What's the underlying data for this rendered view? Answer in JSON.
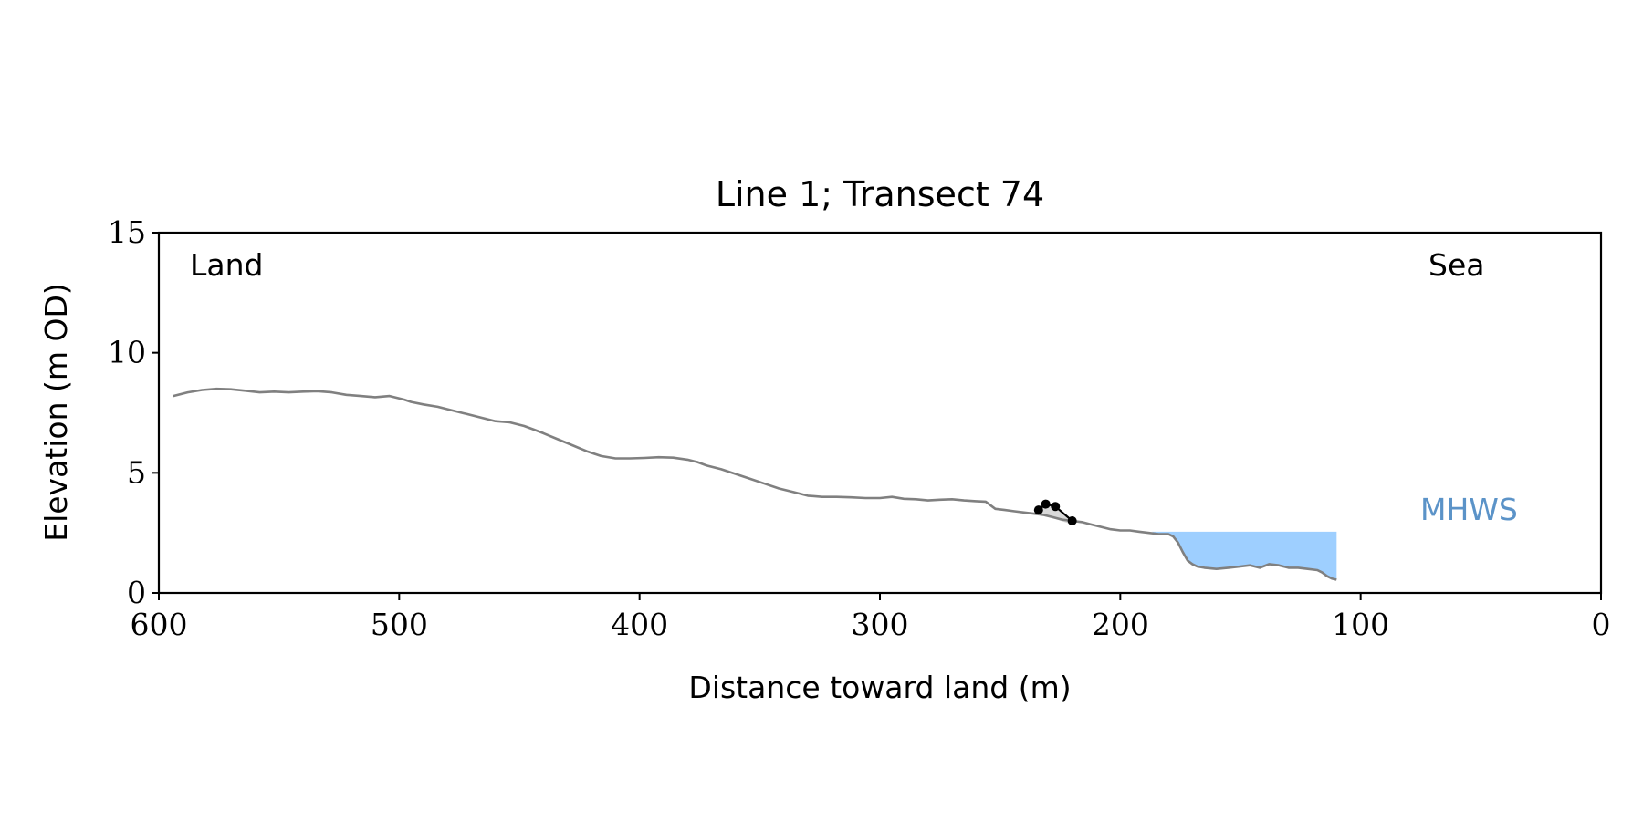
{
  "chart_data": {
    "type": "line",
    "title": "Line 1; Transect 74",
    "xlabel": "Distance toward land (m)",
    "ylabel": "Elevation (m OD)",
    "xlim": [
      600,
      0
    ],
    "ylim": [
      0,
      15
    ],
    "xticks": [
      600,
      500,
      400,
      300,
      200,
      100,
      0
    ],
    "yticks": [
      0,
      5,
      10,
      15
    ],
    "grid": false,
    "annotations": {
      "land": "Land",
      "sea": "Sea",
      "mhws": "MHWS"
    },
    "colors": {
      "profile": "#808080",
      "water": "#9ecfff",
      "mhws_label": "#5b93c8",
      "points": "#000000",
      "highlight": "#d9d9d9"
    },
    "mhws_level": 2.55,
    "water_extent": [
      187,
      110
    ],
    "series": [
      {
        "x": [
          594,
          588,
          582,
          576,
          570,
          564,
          558,
          552,
          546,
          540,
          534,
          528,
          522,
          516,
          510,
          504,
          498,
          495,
          490,
          484,
          478,
          472,
          466,
          460,
          454,
          448,
          444,
          440,
          434,
          428,
          422,
          416,
          410,
          404,
          398,
          392,
          386,
          380,
          376,
          372,
          366,
          360,
          354,
          348,
          342,
          336,
          330,
          324,
          318,
          312,
          306,
          300,
          295,
          290,
          285,
          280,
          275,
          270,
          265,
          260,
          256,
          252,
          248,
          244,
          240,
          236,
          232,
          228,
          224,
          220,
          216,
          212,
          208,
          204,
          200,
          196,
          192,
          188,
          184,
          180,
          178,
          176,
          174,
          172,
          170,
          168,
          165,
          160,
          155,
          150,
          146,
          142,
          138,
          134,
          130,
          126,
          122,
          118,
          116,
          114,
          112,
          110
        ],
        "y": [
          8.2,
          8.35,
          8.45,
          8.5,
          8.48,
          8.42,
          8.35,
          8.38,
          8.35,
          8.38,
          8.4,
          8.35,
          8.25,
          8.2,
          8.15,
          8.2,
          8.05,
          7.95,
          7.85,
          7.75,
          7.6,
          7.45,
          7.3,
          7.15,
          7.1,
          6.95,
          6.8,
          6.65,
          6.4,
          6.15,
          5.9,
          5.7,
          5.6,
          5.6,
          5.62,
          5.65,
          5.63,
          5.55,
          5.45,
          5.3,
          5.15,
          4.95,
          4.75,
          4.55,
          4.35,
          4.2,
          4.05,
          4.0,
          4.0,
          3.98,
          3.95,
          3.95,
          4.0,
          3.92,
          3.9,
          3.85,
          3.88,
          3.9,
          3.85,
          3.82,
          3.8,
          3.5,
          3.45,
          3.4,
          3.35,
          3.3,
          3.25,
          3.15,
          3.05,
          3.0,
          2.95,
          2.85,
          2.75,
          2.65,
          2.6,
          2.6,
          2.55,
          2.5,
          2.45,
          2.45,
          2.35,
          2.1,
          1.7,
          1.35,
          1.2,
          1.1,
          1.05,
          1.0,
          1.05,
          1.1,
          1.15,
          1.05,
          1.2,
          1.15,
          1.05,
          1.05,
          1.0,
          0.95,
          0.85,
          0.7,
          0.6,
          0.55
        ]
      },
      {
        "x": [
          234,
          231,
          227,
          220
        ],
        "y": [
          3.45,
          3.7,
          3.6,
          3.0
        ]
      }
    ]
  }
}
